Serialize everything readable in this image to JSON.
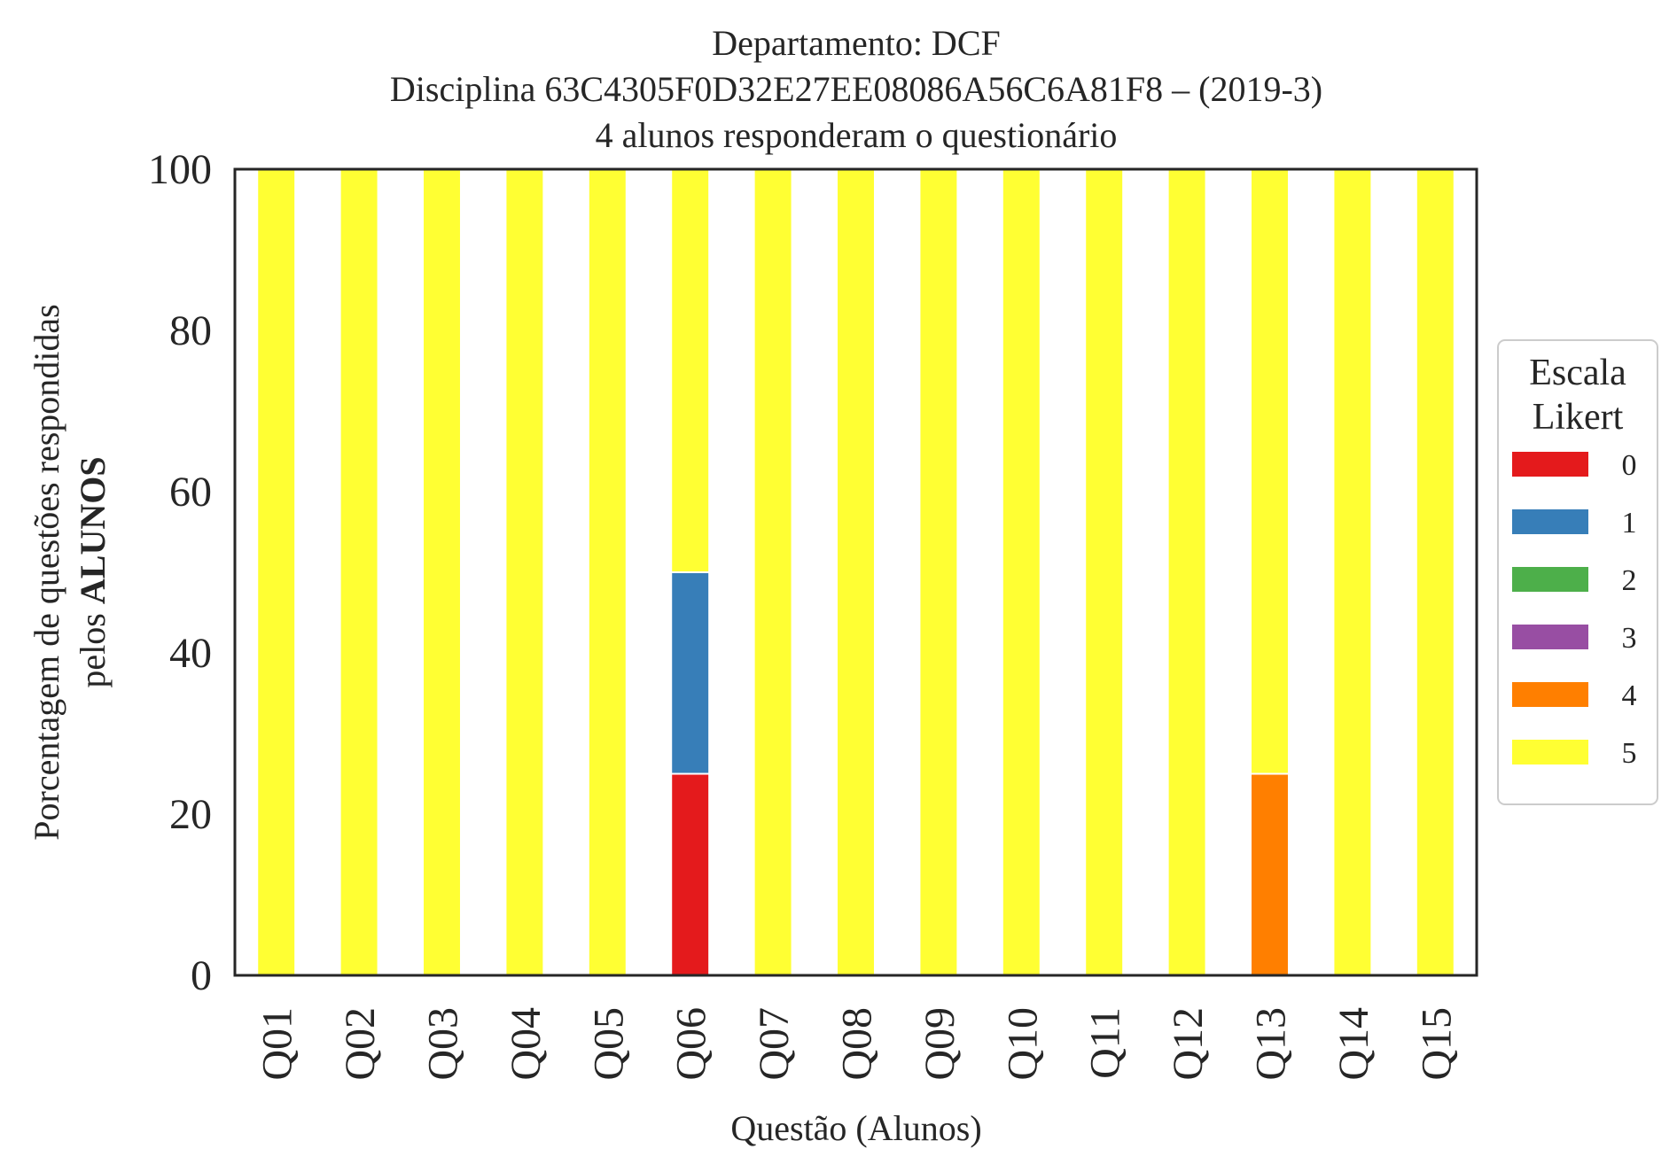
{
  "chart_data": {
    "type": "bar",
    "stacked": true,
    "title_lines": [
      "Departamento: DCF",
      "Disciplina 63C4305F0D32E27EE08086A56C6A81F8 – (2019-3)",
      "4 alunos responderam o questionário"
    ],
    "xlabel": "Questão (Alunos)",
    "ylabel_line1": "Porcentagem de questões respondidas",
    "ylabel_line2_prefix": "pelos ",
    "ylabel_line2_bold": "ALUNOS",
    "ylim": [
      0,
      100
    ],
    "yticks": [
      "0",
      "20",
      "40",
      "60",
      "80",
      "100"
    ],
    "categories": [
      "Q01",
      "Q02",
      "Q03",
      "Q04",
      "Q05",
      "Q06",
      "Q07",
      "Q08",
      "Q09",
      "Q10",
      "Q11",
      "Q12",
      "Q13",
      "Q14",
      "Q15"
    ],
    "legend_title_lines": [
      "Escala",
      "Likert"
    ],
    "legend_position": "right",
    "series": [
      {
        "name": "0",
        "color": "#e41a1c",
        "values": [
          0,
          0,
          0,
          0,
          0,
          25,
          0,
          0,
          0,
          0,
          0,
          0,
          0,
          0,
          0
        ]
      },
      {
        "name": "1",
        "color": "#377eb8",
        "values": [
          0,
          0,
          0,
          0,
          0,
          25,
          0,
          0,
          0,
          0,
          0,
          0,
          0,
          0,
          0
        ]
      },
      {
        "name": "2",
        "color": "#4daf4a",
        "values": [
          0,
          0,
          0,
          0,
          0,
          0,
          0,
          0,
          0,
          0,
          0,
          0,
          0,
          0,
          0
        ]
      },
      {
        "name": "3",
        "color": "#984ea3",
        "values": [
          0,
          0,
          0,
          0,
          0,
          0,
          0,
          0,
          0,
          0,
          0,
          0,
          0,
          0,
          0
        ]
      },
      {
        "name": "4",
        "color": "#ff7f00",
        "values": [
          0,
          0,
          0,
          0,
          0,
          0,
          0,
          0,
          0,
          0,
          0,
          0,
          25,
          0,
          0
        ]
      },
      {
        "name": "5",
        "color": "#ffff33",
        "values": [
          100,
          100,
          100,
          100,
          100,
          50,
          100,
          100,
          100,
          100,
          100,
          100,
          75,
          100,
          100
        ]
      }
    ],
    "grid": false
  }
}
